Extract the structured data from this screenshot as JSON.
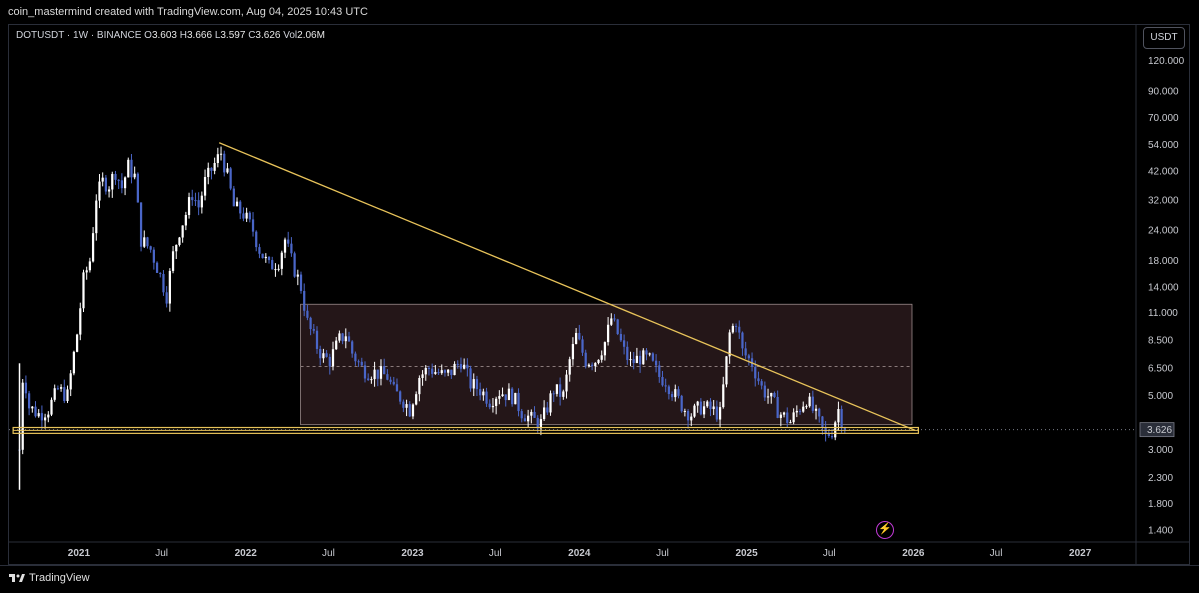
{
  "header": {
    "attribution": "coin_mastermind created with TradingView.com, Aug 04, 2025 10:43 UTC"
  },
  "legend": {
    "symbol": "DOTUSDT · 1W · BINANCE",
    "o_key": "O",
    "o_val": "3.603",
    "h_key": "H",
    "h_val": "3.666",
    "l_key": "L",
    "l_val": "3.597",
    "c_key": "C",
    "c_val": "3.626",
    "vol_key": "Vol",
    "vol_val": "2.06M"
  },
  "currency_label": "USDT",
  "footer": {
    "brand": "TradingView",
    "brand_icon": "tradingview-logo-icon"
  },
  "colors": {
    "candle": "#4a66c8",
    "candle_up": "#ffffff",
    "trendline": "#e8c35a",
    "range_box": "#2a1a1c",
    "crosshair": "#787b86",
    "bolt": "#c23ad8"
  },
  "chart_data": {
    "type": "candlestick",
    "symbol": "DOTUSDT",
    "interval": "1W",
    "exchange": "BINANCE",
    "y_scale": "log",
    "ylim": [
      1.25,
      135
    ],
    "xlim": [
      "2020-08-01",
      "2027-05-01"
    ],
    "last_price": 3.626,
    "y_ticks": [
      "120.000",
      "90.000",
      "70.000",
      "54.000",
      "42.000",
      "32.000",
      "24.000",
      "18.000",
      "14.000",
      "11.000",
      "8.500",
      "6.500",
      "5.000",
      "3.000",
      "2.300",
      "1.800",
      "1.400"
    ],
    "x_ticks": [
      {
        "label": "2021",
        "date": "2021-01-01",
        "bold": true
      },
      {
        "label": "Jul",
        "date": "2021-07-01",
        "bold": false
      },
      {
        "label": "2022",
        "date": "2022-01-01",
        "bold": true
      },
      {
        "label": "Jul",
        "date": "2022-07-01",
        "bold": false
      },
      {
        "label": "2023",
        "date": "2023-01-01",
        "bold": true
      },
      {
        "label": "Jul",
        "date": "2023-07-01",
        "bold": false
      },
      {
        "label": "2024",
        "date": "2024-01-01",
        "bold": true
      },
      {
        "label": "Jul",
        "date": "2024-07-01",
        "bold": false
      },
      {
        "label": "2025",
        "date": "2025-01-01",
        "bold": true
      },
      {
        "label": "Jul",
        "date": "2025-07-01",
        "bold": false
      },
      {
        "label": "2026",
        "date": "2026-01-01",
        "bold": true
      },
      {
        "label": "Jul",
        "date": "2026-07-01",
        "bold": false
      },
      {
        "label": "2027",
        "date": "2027-01-01",
        "bold": true
      }
    ],
    "price_path": [
      [
        "2020-08-24",
        3.0
      ],
      [
        "2020-09-01",
        6.5
      ],
      [
        "2020-09-14",
        4.5
      ],
      [
        "2020-10-05",
        4.2
      ],
      [
        "2020-10-26",
        4.4
      ],
      [
        "2020-11-16",
        5.3
      ],
      [
        "2020-12-07",
        5.0
      ],
      [
        "2020-12-28",
        9.0
      ],
      [
        "2021-01-11",
        15.0
      ],
      [
        "2021-01-25",
        18.0
      ],
      [
        "2021-02-08",
        33.0
      ],
      [
        "2021-02-22",
        38.0
      ],
      [
        "2021-03-08",
        37.0
      ],
      [
        "2021-03-22",
        42.0
      ],
      [
        "2021-04-05",
        36.0
      ],
      [
        "2021-04-19",
        44.0
      ],
      [
        "2021-05-03",
        40.0
      ],
      [
        "2021-05-17",
        22.0
      ],
      [
        "2021-06-07",
        20.0
      ],
      [
        "2021-06-21",
        17.0
      ],
      [
        "2021-07-12",
        13.0
      ],
      [
        "2021-07-26",
        19.0
      ],
      [
        "2021-08-09",
        24.0
      ],
      [
        "2021-08-23",
        28.0
      ],
      [
        "2021-09-06",
        34.0
      ],
      [
        "2021-09-20",
        30.0
      ],
      [
        "2021-10-04",
        38.0
      ],
      [
        "2021-10-25",
        45.0
      ],
      [
        "2021-11-08",
        50.0
      ],
      [
        "2021-11-22",
        40.0
      ],
      [
        "2021-12-06",
        30.0
      ],
      [
        "2021-12-27",
        28.0
      ],
      [
        "2022-01-17",
        24.0
      ],
      [
        "2022-01-31",
        20.0
      ],
      [
        "2022-02-21",
        17.0
      ],
      [
        "2022-03-14",
        18.0
      ],
      [
        "2022-03-28",
        22.0
      ],
      [
        "2022-04-11",
        18.0
      ],
      [
        "2022-05-02",
        14.0
      ],
      [
        "2022-05-16",
        10.0
      ],
      [
        "2022-06-06",
        8.0
      ],
      [
        "2022-06-20",
        7.2
      ],
      [
        "2022-07-04",
        7.0
      ],
      [
        "2022-07-25",
        8.5
      ],
      [
        "2022-08-08",
        9.0
      ],
      [
        "2022-08-22",
        7.5
      ],
      [
        "2022-09-12",
        6.5
      ],
      [
        "2022-09-26",
        6.3
      ],
      [
        "2022-10-17",
        6.2
      ],
      [
        "2022-11-07",
        6.0
      ],
      [
        "2022-11-21",
        5.2
      ],
      [
        "2022-12-12",
        4.8
      ],
      [
        "2022-12-26",
        4.4
      ],
      [
        "2023-01-16",
        6.0
      ],
      [
        "2023-02-06",
        6.5
      ],
      [
        "2023-02-27",
        6.2
      ],
      [
        "2023-03-13",
        6.0
      ],
      [
        "2023-03-27",
        6.3
      ],
      [
        "2023-04-17",
        7.0
      ],
      [
        "2023-05-08",
        5.6
      ],
      [
        "2023-05-29",
        5.3
      ],
      [
        "2023-06-19",
        4.8
      ],
      [
        "2023-07-10",
        5.2
      ],
      [
        "2023-08-07",
        5.0
      ],
      [
        "2023-08-28",
        4.3
      ],
      [
        "2023-09-18",
        4.0
      ],
      [
        "2023-10-09",
        3.85
      ],
      [
        "2023-10-23",
        4.5
      ],
      [
        "2023-11-06",
        5.3
      ],
      [
        "2023-11-27",
        5.0
      ],
      [
        "2023-12-11",
        7.0
      ],
      [
        "2023-12-25",
        8.8
      ],
      [
        "2024-01-15",
        7.0
      ],
      [
        "2024-02-05",
        7.0
      ],
      [
        "2024-02-26",
        8.3
      ],
      [
        "2024-03-11",
        10.4
      ],
      [
        "2024-03-25",
        9.0
      ],
      [
        "2024-04-08",
        7.6
      ],
      [
        "2024-04-22",
        6.8
      ],
      [
        "2024-05-13",
        7.2
      ],
      [
        "2024-06-03",
        7.0
      ],
      [
        "2024-06-24",
        6.0
      ],
      [
        "2024-07-08",
        5.8
      ],
      [
        "2024-07-29",
        5.0
      ],
      [
        "2024-08-19",
        4.4
      ],
      [
        "2024-09-02",
        4.2
      ],
      [
        "2024-09-23",
        4.5
      ],
      [
        "2024-10-14",
        4.4
      ],
      [
        "2024-11-04",
        4.2
      ],
      [
        "2024-11-25",
        9.0
      ],
      [
        "2024-12-09",
        10.2
      ],
      [
        "2024-12-23",
        7.6
      ],
      [
        "2025-01-13",
        6.8
      ],
      [
        "2025-02-03",
        5.4
      ],
      [
        "2025-02-24",
        4.8
      ],
      [
        "2025-03-17",
        4.2
      ],
      [
        "2025-04-07",
        3.9
      ],
      [
        "2025-04-21",
        4.3
      ],
      [
        "2025-05-12",
        4.9
      ],
      [
        "2025-06-02",
        4.1
      ],
      [
        "2025-06-23",
        3.4
      ],
      [
        "2025-07-07",
        3.6
      ],
      [
        "2025-07-21",
        4.4
      ],
      [
        "2025-08-04",
        3.626
      ]
    ],
    "annotations": {
      "descending_trendline": {
        "start": [
          "2021-11-04",
          55.0
        ],
        "end": [
          "2026-01-05",
          3.6
        ]
      },
      "support_line_price": 3.6,
      "support_band": {
        "from": "2020-08-10",
        "to": "2026-01-12",
        "low": 3.5,
        "high": 3.7
      },
      "range_box": {
        "from": "2022-05-01",
        "to": "2025-12-29",
        "low": 3.8,
        "high": 11.9,
        "mid": 6.6
      },
      "last_price_line": 3.626
    }
  }
}
